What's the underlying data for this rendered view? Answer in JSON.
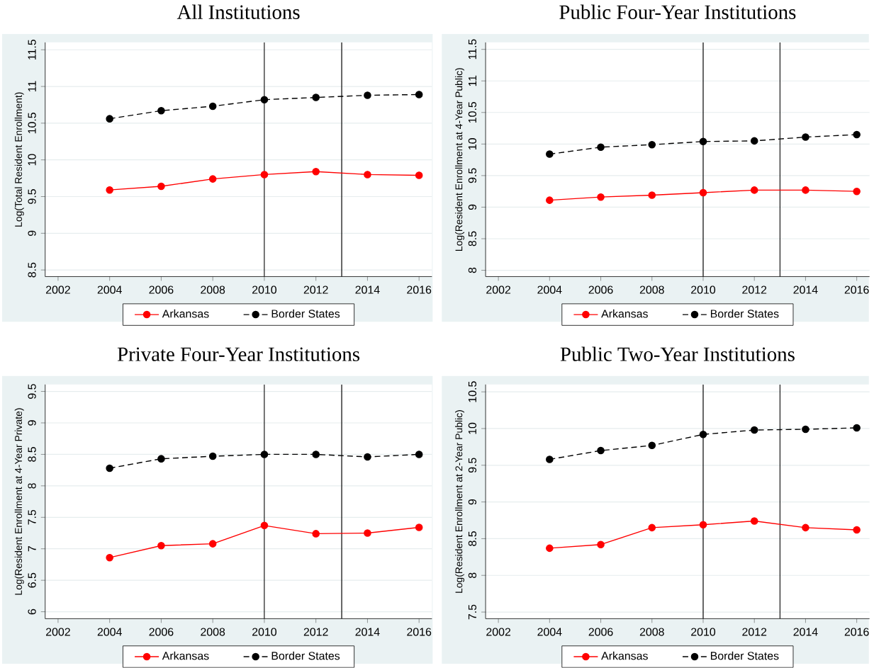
{
  "chart_data": [
    {
      "type": "line",
      "title": "All Institutions",
      "ylabel": "Log(Total Resident Enrollment)",
      "x": [
        2004,
        2006,
        2008,
        2010,
        2012,
        2014,
        2016
      ],
      "xlim": [
        2001.5,
        2016.5
      ],
      "xticks": [
        2002,
        2004,
        2006,
        2008,
        2010,
        2012,
        2014,
        2016
      ],
      "ylim": [
        8.41,
        11.6
      ],
      "yticks": [
        8.5,
        9,
        9.5,
        10,
        10.5,
        11,
        11.5
      ],
      "grid": "y",
      "legend": "bottom",
      "marker": "circle",
      "series": [
        {
          "name": "Arkansas",
          "color": "#ff0000",
          "line_style": "solid",
          "values": [
            9.59,
            9.64,
            9.74,
            9.8,
            9.84,
            9.8,
            9.79
          ]
        },
        {
          "name": "Border States",
          "color": "#000000",
          "line_style": "dashed",
          "values": [
            10.56,
            10.67,
            10.73,
            10.82,
            10.85,
            10.88,
            10.89
          ]
        }
      ],
      "ref_lines": [
        {
          "axis": "x",
          "value": 2010,
          "color": "#000000"
        },
        {
          "axis": "x",
          "value": 2013,
          "color": "#000000"
        }
      ]
    },
    {
      "type": "line",
      "title": "Public Four-Year Institutions",
      "ylabel": "Log(Resident Enrollment at 4-Year Public)",
      "x": [
        2004,
        2006,
        2008,
        2010,
        2012,
        2014,
        2016
      ],
      "xlim": [
        2001.5,
        2016.5
      ],
      "xticks": [
        2002,
        2004,
        2006,
        2008,
        2010,
        2012,
        2014,
        2016
      ],
      "ylim": [
        7.9,
        11.61
      ],
      "yticks": [
        8,
        8.5,
        9,
        9.5,
        10,
        10.5,
        11,
        11.5
      ],
      "grid": "y",
      "legend": "bottom",
      "marker": "circle",
      "series": [
        {
          "name": "Arkansas",
          "color": "#ff0000",
          "line_style": "solid",
          "values": [
            9.11,
            9.16,
            9.19,
            9.23,
            9.27,
            9.27,
            9.25
          ]
        },
        {
          "name": "Border States",
          "color": "#000000",
          "line_style": "dashed",
          "values": [
            9.84,
            9.95,
            9.99,
            10.04,
            10.05,
            10.11,
            10.15
          ]
        }
      ],
      "ref_lines": [
        {
          "axis": "x",
          "value": 2010,
          "color": "#000000"
        },
        {
          "axis": "x",
          "value": 2013,
          "color": "#000000"
        }
      ]
    },
    {
      "type": "line",
      "title": "Private Four-Year Institutions",
      "ylabel": "Log(Resident Enrollment at 4-Year Private)",
      "x": [
        2004,
        2006,
        2008,
        2010,
        2012,
        2014,
        2016
      ],
      "xlim": [
        2001.5,
        2016.5
      ],
      "xticks": [
        2002,
        2004,
        2006,
        2008,
        2010,
        2012,
        2014,
        2016
      ],
      "ylim": [
        5.89,
        9.61
      ],
      "yticks": [
        6,
        6.5,
        7,
        7.5,
        8,
        8.5,
        9,
        9.5
      ],
      "grid": "y",
      "legend": "bottom",
      "marker": "circle",
      "series": [
        {
          "name": "Arkansas",
          "color": "#ff0000",
          "line_style": "solid",
          "values": [
            6.86,
            7.05,
            7.08,
            7.37,
            7.24,
            7.25,
            7.34
          ]
        },
        {
          "name": "Border States",
          "color": "#000000",
          "line_style": "dashed",
          "values": [
            8.28,
            8.43,
            8.47,
            8.5,
            8.5,
            8.46,
            8.5
          ]
        }
      ],
      "ref_lines": [
        {
          "axis": "x",
          "value": 2010,
          "color": "#000000"
        },
        {
          "axis": "x",
          "value": 2013,
          "color": "#000000"
        }
      ]
    },
    {
      "type": "line",
      "title": "Public Two-Year Institutions",
      "ylabel": "Log(Resident Enrollment at 2-Year Public)",
      "x": [
        2004,
        2006,
        2008,
        2010,
        2012,
        2014,
        2016
      ],
      "xlim": [
        2001.5,
        2016.5
      ],
      "xticks": [
        2002,
        2004,
        2006,
        2008,
        2010,
        2012,
        2014,
        2016
      ],
      "ylim": [
        7.41,
        10.6
      ],
      "yticks": [
        7.5,
        8,
        8.5,
        9,
        9.5,
        10,
        10.5
      ],
      "grid": "y",
      "legend": "bottom",
      "marker": "circle",
      "series": [
        {
          "name": "Arkansas",
          "color": "#ff0000",
          "line_style": "solid",
          "values": [
            8.37,
            8.42,
            8.65,
            8.69,
            8.74,
            8.65,
            8.62
          ]
        },
        {
          "name": "Border States",
          "color": "#000000",
          "line_style": "dashed",
          "values": [
            9.58,
            9.7,
            9.77,
            9.92,
            9.98,
            9.99,
            10.01
          ]
        }
      ],
      "ref_lines": [
        {
          "axis": "x",
          "value": 2010,
          "color": "#000000"
        },
        {
          "axis": "x",
          "value": 2013,
          "color": "#000000"
        }
      ]
    }
  ]
}
